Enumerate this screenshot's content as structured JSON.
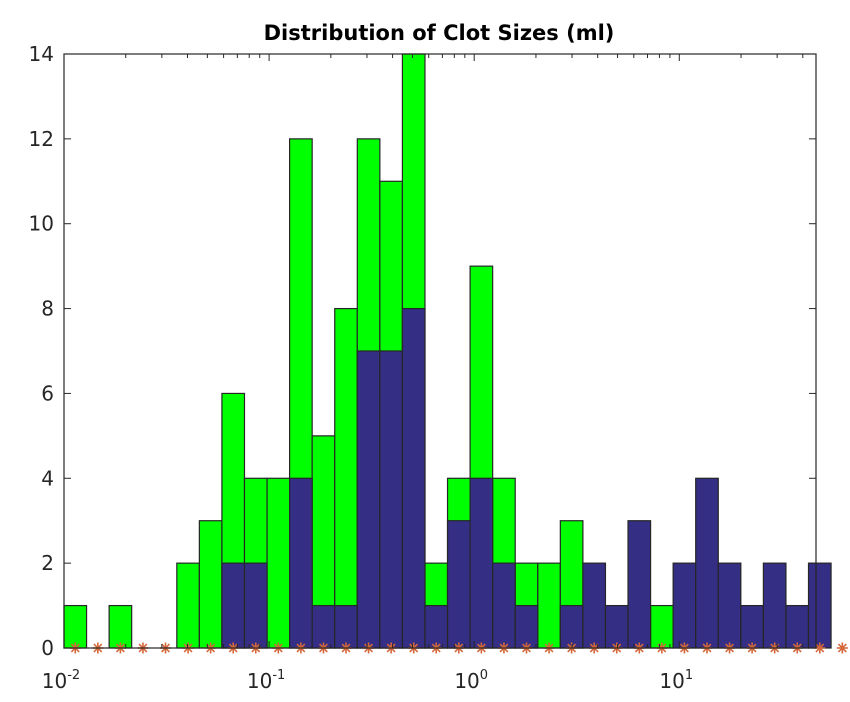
{
  "chart_data": {
    "type": "bar",
    "title": "Distribution of Clot Sizes (ml)",
    "xlabel": "",
    "ylabel": "",
    "x_scale": "log",
    "xlim": [
      0.01,
      46.4
    ],
    "ylim": [
      0,
      14
    ],
    "grid": false,
    "legend": "none",
    "bin_edges_log10": [
      -2.0,
      -1.89,
      -1.78,
      -1.67,
      -1.56,
      -1.45,
      -1.34,
      -1.23,
      -1.12,
      -1.01,
      -0.9,
      -0.79,
      -0.68,
      -0.57,
      -0.46,
      -0.35,
      -0.24,
      -0.13,
      -0.02,
      0.09,
      0.2,
      0.31,
      0.42,
      0.53,
      0.64,
      0.75,
      0.86,
      0.97,
      1.08,
      1.19,
      1.3,
      1.41,
      1.52,
      1.63,
      1.74,
      1.85
    ],
    "series": [
      {
        "values": [
          1,
          0,
          1,
          0,
          0,
          2,
          3,
          6,
          4,
          4,
          12,
          5,
          8,
          12,
          11,
          14,
          2,
          4,
          9,
          4,
          2,
          2,
          3,
          0,
          0,
          0,
          1,
          0,
          0,
          0,
          0,
          0,
          0,
          0,
          0
        ],
        "color": "#00ff00"
      },
      {
        "values": [
          0,
          0,
          0,
          0,
          0,
          0,
          0,
          2,
          2,
          0,
          4,
          1,
          1,
          7,
          7,
          8,
          1,
          3,
          4,
          2,
          1,
          0,
          1,
          2,
          1,
          3,
          0,
          2,
          4,
          2,
          1,
          2,
          1,
          2,
          0
        ],
        "color": "#342e85"
      },
      {
        "values": [
          0,
          0,
          0,
          0,
          0,
          0,
          0,
          0,
          0,
          0,
          0,
          0,
          0,
          0,
          0,
          0,
          0,
          0,
          0,
          0,
          0,
          0,
          0,
          0,
          0,
          0,
          0,
          0,
          0,
          0,
          0,
          0,
          0,
          0,
          0
        ],
        "color": "#d4683a",
        "marker": "asterisk"
      }
    ],
    "x_ticks": [
      {
        "base": "10",
        "exp": "-2",
        "value": 0.01
      },
      {
        "base": "10",
        "exp": "-1",
        "value": 0.1
      },
      {
        "base": "10",
        "exp": "0",
        "value": 1
      },
      {
        "base": "10",
        "exp": "1",
        "value": 10
      }
    ],
    "y_ticks": [
      "0",
      "2",
      "4",
      "6",
      "8",
      "10",
      "12",
      "14"
    ]
  }
}
